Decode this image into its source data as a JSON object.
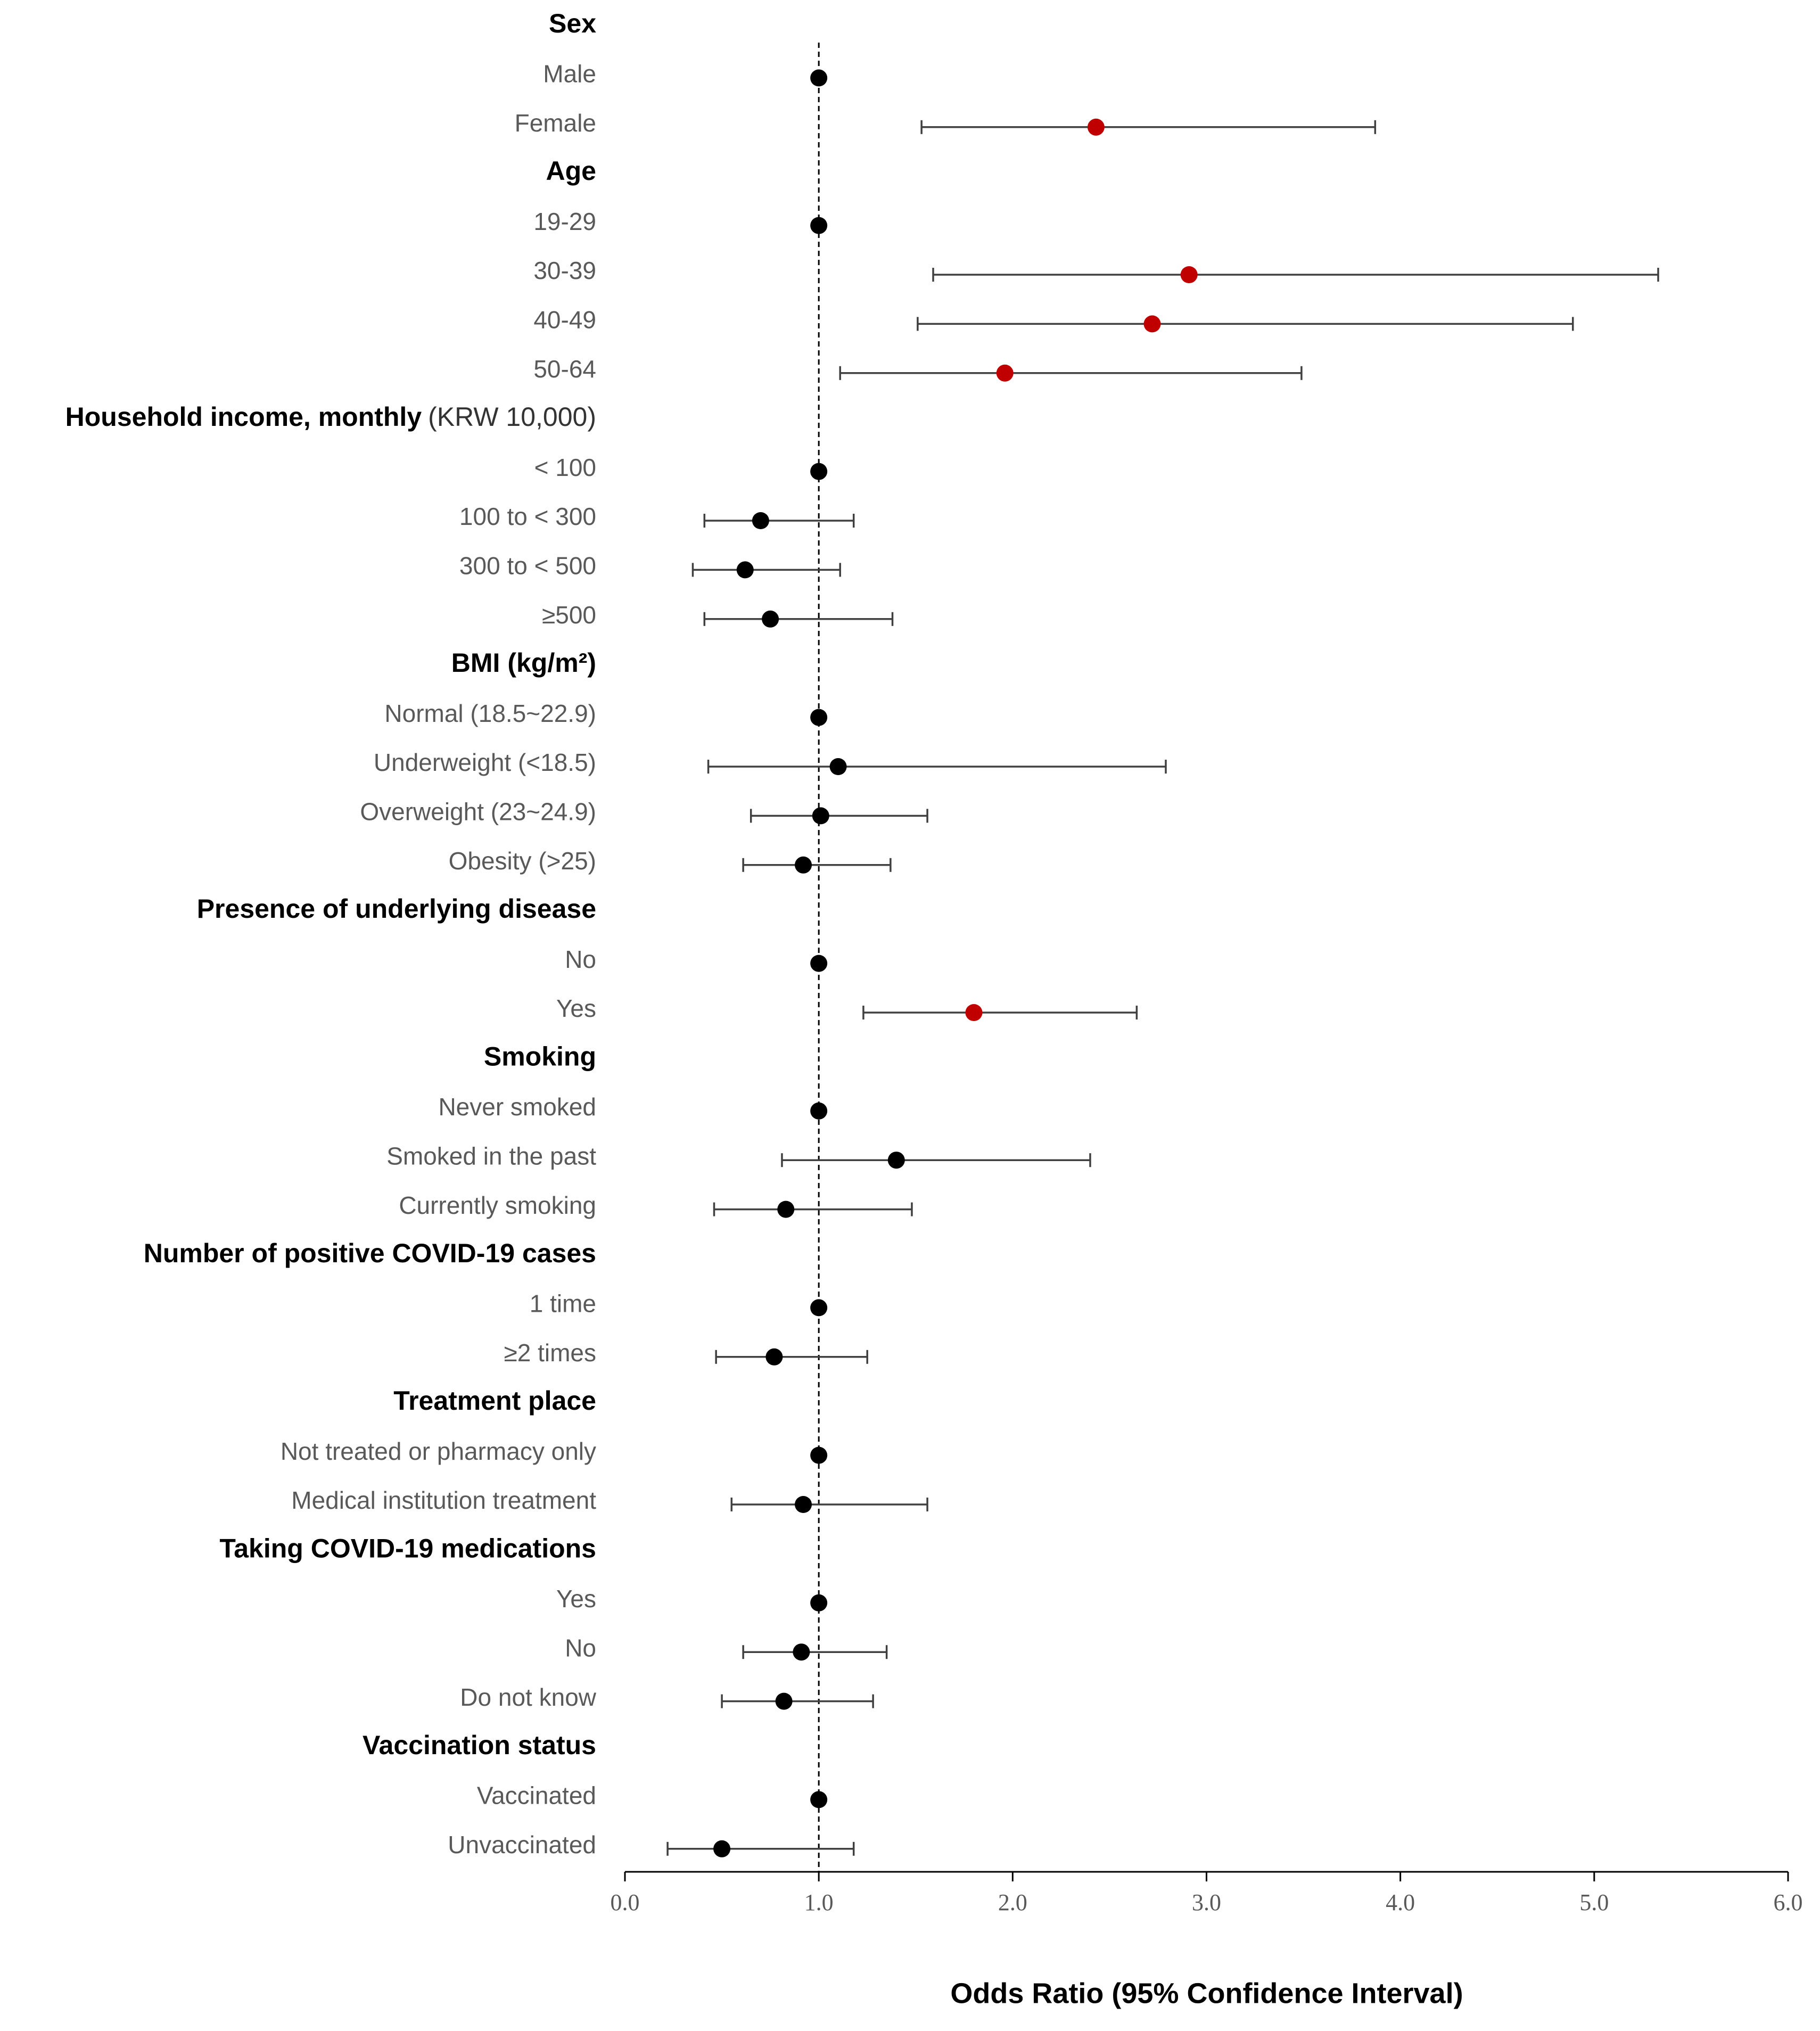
{
  "chart_data": {
    "type": "forest",
    "x_label": "Odds Ratio (95% Confidence Interval)",
    "xlim": [
      0,
      6
    ],
    "xticks": [
      {
        "value": 0,
        "label": "0.0"
      },
      {
        "value": 1,
        "label": "1.0"
      },
      {
        "value": 2,
        "label": "2.0"
      },
      {
        "value": 3,
        "label": "3.0"
      },
      {
        "value": 4,
        "label": "4.0"
      },
      {
        "value": 5,
        "label": "5.0"
      },
      {
        "value": 6,
        "label": "6.0"
      }
    ],
    "reference_line": 1,
    "groups": [
      {
        "name": "Sex",
        "categories": [
          "Male",
          "Female"
        ],
        "values": [
          1,
          2.43
        ],
        "lower": [
          null,
          1.53
        ],
        "upper": [
          null,
          3.87
        ],
        "colors": [
          "#000000",
          "#c00000"
        ]
      },
      {
        "name": "Age",
        "categories": [
          "19-29",
          "30-39",
          "40-49",
          "50-64"
        ],
        "values": [
          1,
          2.91,
          2.72,
          1.96
        ],
        "lower": [
          null,
          1.59,
          1.51,
          1.11
        ],
        "upper": [
          null,
          5.33,
          4.89,
          3.49
        ],
        "colors": [
          "#000000",
          "#c00000",
          "#c00000",
          "#c00000"
        ]
      },
      {
        "name": "Household income, monthly",
        "unit": "(KRW 10,000)",
        "categories": [
          "< 100",
          "100 to  < 300",
          "300 to  < 500",
          "≥500"
        ],
        "values": [
          1,
          0.7,
          0.62,
          0.75
        ],
        "lower": [
          null,
          0.41,
          0.35,
          0.41
        ],
        "upper": [
          null,
          1.18,
          1.11,
          1.38
        ],
        "colors": [
          "#000000",
          "#000000",
          "#000000",
          "#000000"
        ]
      },
      {
        "name": "BMI (kg/m²)",
        "categories": [
          "Normal (18.5~22.9)",
          "Underweight (<18.5)",
          "Overweight (23~24.9)",
          "Obesity (>25)"
        ],
        "values": [
          1,
          1.1,
          1.01,
          0.92
        ],
        "lower": [
          null,
          0.43,
          0.65,
          0.61
        ],
        "upper": [
          null,
          2.79,
          1.56,
          1.37
        ],
        "colors": [
          "#000000",
          "#000000",
          "#000000",
          "#000000"
        ]
      },
      {
        "name": "Presence of underlying disease",
        "categories": [
          "No",
          "Yes"
        ],
        "values": [
          1,
          1.8
        ],
        "lower": [
          null,
          1.23
        ],
        "upper": [
          null,
          2.64
        ],
        "colors": [
          "#000000",
          "#c00000"
        ]
      },
      {
        "name": "Smoking",
        "categories": [
          "Never smoked",
          "Smoked in the past",
          "Currently smoking"
        ],
        "values": [
          1,
          1.4,
          0.83
        ],
        "lower": [
          null,
          0.81,
          0.46
        ],
        "upper": [
          null,
          2.4,
          1.48
        ],
        "colors": [
          "#000000",
          "#000000",
          "#000000"
        ]
      },
      {
        "name": "Number of positive COVID-19 cases",
        "categories": [
          "1 time",
          "≥2 times"
        ],
        "values": [
          1,
          0.77
        ],
        "lower": [
          null,
          0.47
        ],
        "upper": [
          null,
          1.25
        ],
        "colors": [
          "#000000",
          "#000000"
        ]
      },
      {
        "name": "Treatment place",
        "categories": [
          "Not treated or pharmacy only",
          "Medical institution treatment"
        ],
        "values": [
          1,
          0.92
        ],
        "lower": [
          null,
          0.55
        ],
        "upper": [
          null,
          1.56
        ],
        "colors": [
          "#000000",
          "#000000"
        ]
      },
      {
        "name": "Taking COVID-19 medications",
        "categories": [
          "Yes",
          "No",
          "Do not know"
        ],
        "values": [
          1,
          0.91,
          0.82
        ],
        "lower": [
          null,
          0.61,
          0.5
        ],
        "upper": [
          null,
          1.35,
          1.28
        ],
        "colors": [
          "#000000",
          "#000000",
          "#000000"
        ]
      },
      {
        "name": "Vaccination status",
        "categories": [
          "Vaccinated",
          "Unvaccinated"
        ],
        "values": [
          1,
          0.5
        ],
        "lower": [
          null,
          0.22
        ],
        "upper": [
          null,
          1.18
        ],
        "colors": [
          "#000000",
          "#000000"
        ]
      }
    ]
  }
}
